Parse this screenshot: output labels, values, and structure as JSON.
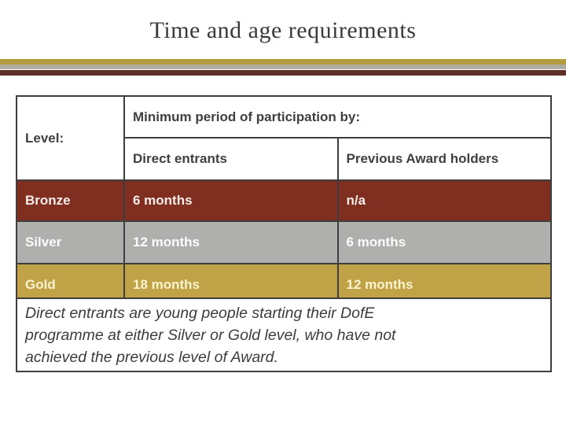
{
  "slide": {
    "title": "Time and age requirements",
    "colors": {
      "background": "#ffffff",
      "title_text": "#3a3a3a",
      "stripe_gold": "#b29b41",
      "stripe_gray": "#b1aca1",
      "stripe_maroon": "#5e2e29",
      "table_border": "#3e3e3e",
      "bronze_row_bg": "#7f2e1f",
      "silver_row_bg": "#afafad",
      "gold_row_bg": "#c0a347",
      "header_text": "#3f4040",
      "bronze_row_text": "#f5ede7",
      "silver_row_text": "#fcfcfc",
      "gold_row_text": "#faf3d0",
      "note_text": "#3c3c3c"
    }
  },
  "table": {
    "participation_header": "Minimum period of participation by:",
    "level_label": "Level:",
    "column_headers": {
      "direct": "Direct entrants",
      "previous": "Previous Award holders"
    },
    "rows": [
      {
        "level": "Bronze",
        "direct": "6 months",
        "previous": "n/a"
      },
      {
        "level": "Silver",
        "direct": "12 months",
        "previous": "6 months"
      },
      {
        "level": "Gold",
        "direct": "18 months",
        "previous": "12 months"
      }
    ]
  },
  "note": {
    "lines": [
      "Direct entrants are young people starting their DofE",
      "programme at either Silver or Gold level, who have not",
      "achieved the previous level of Award."
    ]
  }
}
